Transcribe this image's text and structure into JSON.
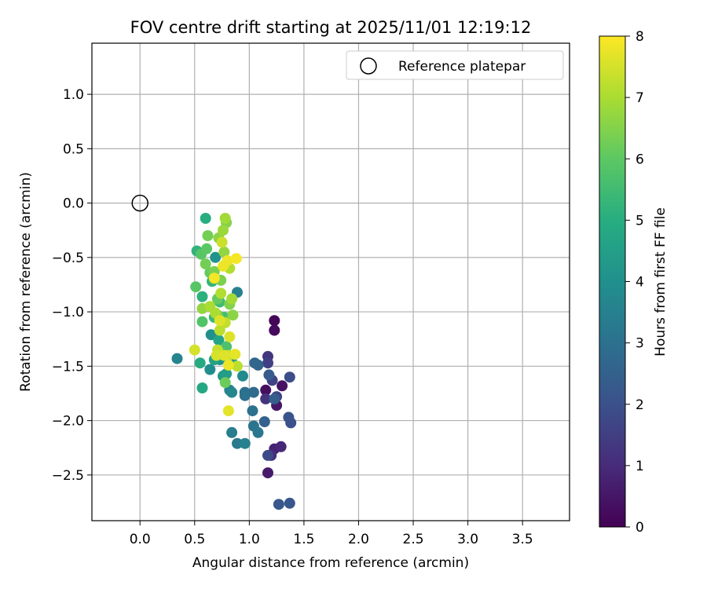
{
  "chart_data": {
    "type": "scatter",
    "title": "FOV centre drift starting at 2025/11/01 12:19:12",
    "xlabel": "Angular distance from reference (arcmin)",
    "ylabel": "Rotation from reference (arcmin)",
    "xlim": [
      -0.44,
      3.93
    ],
    "ylim": [
      -2.92,
      1.47
    ],
    "xticks": [
      0.0,
      0.5,
      1.0,
      1.5,
      2.0,
      2.5,
      3.0,
      3.5
    ],
    "xtick_labels": [
      "0.0",
      "0.5",
      "1.0",
      "1.5",
      "2.0",
      "2.5",
      "3.0",
      "3.5"
    ],
    "yticks": [
      1.0,
      0.5,
      0.0,
      -0.5,
      -1.0,
      -1.5,
      -2.0,
      -2.5
    ],
    "ytick_labels": [
      "1.0",
      "0.5",
      "0.0",
      "−0.5",
      "−1.0",
      "−1.5",
      "−2.0",
      "−2.5"
    ],
    "grid": true,
    "legend": {
      "position": "top-right",
      "entries": [
        "Reference platepar"
      ]
    },
    "reference_point": {
      "x": 0.0,
      "y": 0.0,
      "marker": "open-circle",
      "label": "Reference platepar"
    },
    "colorbar": {
      "label": "Hours from first FF file",
      "colormap": "viridis",
      "min": 0,
      "max": 8,
      "ticks": [
        0,
        1,
        2,
        3,
        4,
        5,
        6,
        7,
        8
      ],
      "tick_labels": [
        "0",
        "1",
        "2",
        "3",
        "4",
        "5",
        "6",
        "7",
        "8"
      ]
    },
    "points": [
      {
        "x": 1.23,
        "y": -1.08,
        "h": 0.1
      },
      {
        "x": 1.23,
        "y": -1.17,
        "h": 0.2
      },
      {
        "x": 1.15,
        "y": -1.72,
        "h": 0.3
      },
      {
        "x": 1.3,
        "y": -1.68,
        "h": 0.4
      },
      {
        "x": 1.25,
        "y": -1.86,
        "h": 0.5
      },
      {
        "x": 1.17,
        "y": -2.48,
        "h": 0.6
      },
      {
        "x": 1.23,
        "y": -2.26,
        "h": 0.8
      },
      {
        "x": 1.29,
        "y": -2.24,
        "h": 0.9
      },
      {
        "x": 1.2,
        "y": -2.32,
        "h": 1.1
      },
      {
        "x": 1.15,
        "y": -1.8,
        "h": 1.2
      },
      {
        "x": 1.17,
        "y": -1.41,
        "h": 1.3
      },
      {
        "x": 1.17,
        "y": -1.47,
        "h": 1.5
      },
      {
        "x": 1.21,
        "y": -1.63,
        "h": 1.6
      },
      {
        "x": 1.25,
        "y": -1.78,
        "h": 1.7
      },
      {
        "x": 1.17,
        "y": -2.32,
        "h": 1.8
      },
      {
        "x": 1.37,
        "y": -1.6,
        "h": 1.9
      },
      {
        "x": 1.38,
        "y": -2.02,
        "h": 2.0
      },
      {
        "x": 1.36,
        "y": -1.97,
        "h": 2.1
      },
      {
        "x": 1.27,
        "y": -2.77,
        "h": 2.2
      },
      {
        "x": 1.37,
        "y": -2.76,
        "h": 2.2
      },
      {
        "x": 1.18,
        "y": -1.58,
        "h": 2.3
      },
      {
        "x": 1.23,
        "y": -1.8,
        "h": 2.4
      },
      {
        "x": 1.14,
        "y": -2.01,
        "h": 2.5
      },
      {
        "x": 1.08,
        "y": -1.49,
        "h": 2.6
      },
      {
        "x": 1.05,
        "y": -1.47,
        "h": 2.7
      },
      {
        "x": 1.04,
        "y": -1.74,
        "h": 2.8
      },
      {
        "x": 0.96,
        "y": -1.74,
        "h": 2.9
      },
      {
        "x": 0.96,
        "y": -1.77,
        "h": 3.0
      },
      {
        "x": 1.03,
        "y": -1.91,
        "h": 3.0
      },
      {
        "x": 1.04,
        "y": -2.05,
        "h": 3.1
      },
      {
        "x": 1.08,
        "y": -2.11,
        "h": 3.2
      },
      {
        "x": 0.89,
        "y": -2.21,
        "h": 3.3
      },
      {
        "x": 0.84,
        "y": -2.11,
        "h": 3.4
      },
      {
        "x": 0.96,
        "y": -2.21,
        "h": 3.5
      },
      {
        "x": 0.89,
        "y": -0.82,
        "h": 3.5
      },
      {
        "x": 0.34,
        "y": -1.43,
        "h": 3.6
      },
      {
        "x": 0.82,
        "y": -1.72,
        "h": 3.6
      },
      {
        "x": 0.84,
        "y": -1.74,
        "h": 3.7
      },
      {
        "x": 0.94,
        "y": -1.59,
        "h": 3.8
      },
      {
        "x": 0.64,
        "y": -1.53,
        "h": 3.9
      },
      {
        "x": 0.65,
        "y": -1.21,
        "h": 4.0
      },
      {
        "x": 0.69,
        "y": -0.5,
        "h": 4.1
      },
      {
        "x": 0.73,
        "y": -1.44,
        "h": 4.2
      },
      {
        "x": 0.76,
        "y": -1.59,
        "h": 4.3
      },
      {
        "x": 0.79,
        "y": -1.57,
        "h": 4.4
      },
      {
        "x": 0.84,
        "y": -1.46,
        "h": 4.5
      },
      {
        "x": 0.68,
        "y": -1.44,
        "h": 4.6
      },
      {
        "x": 0.72,
        "y": -1.26,
        "h": 4.7
      },
      {
        "x": 0.57,
        "y": -1.7,
        "h": 4.8
      },
      {
        "x": 0.55,
        "y": -1.47,
        "h": 4.9
      },
      {
        "x": 0.6,
        "y": -0.14,
        "h": 5.0
      },
      {
        "x": 0.57,
        "y": -0.86,
        "h": 5.1
      },
      {
        "x": 0.52,
        "y": -0.44,
        "h": 5.2
      },
      {
        "x": 0.66,
        "y": -0.72,
        "h": 5.3
      },
      {
        "x": 0.68,
        "y": -1.05,
        "h": 5.4
      },
      {
        "x": 0.73,
        "y": -0.91,
        "h": 5.5
      },
      {
        "x": 0.77,
        "y": -1.05,
        "h": 5.6
      },
      {
        "x": 0.79,
        "y": -1.32,
        "h": 5.7
      },
      {
        "x": 0.57,
        "y": -1.09,
        "h": 5.8
      },
      {
        "x": 0.51,
        "y": -0.77,
        "h": 5.9
      },
      {
        "x": 0.56,
        "y": -0.47,
        "h": 5.9
      },
      {
        "x": 0.61,
        "y": -0.42,
        "h": 6.0
      },
      {
        "x": 0.64,
        "y": -0.64,
        "h": 6.1
      },
      {
        "x": 0.71,
        "y": -0.88,
        "h": 6.1
      },
      {
        "x": 0.78,
        "y": -1.65,
        "h": 6.2
      },
      {
        "x": 0.71,
        "y": -1.03,
        "h": 6.2
      },
      {
        "x": 0.6,
        "y": -0.56,
        "h": 6.3
      },
      {
        "x": 0.62,
        "y": -0.3,
        "h": 6.3
      },
      {
        "x": 0.68,
        "y": -0.63,
        "h": 6.4
      },
      {
        "x": 0.74,
        "y": -0.71,
        "h": 6.4
      },
      {
        "x": 0.79,
        "y": -0.18,
        "h": 6.5
      },
      {
        "x": 0.82,
        "y": -0.93,
        "h": 6.5
      },
      {
        "x": 0.85,
        "y": -1.03,
        "h": 6.6
      },
      {
        "x": 0.72,
        "y": -0.32,
        "h": 6.6
      },
      {
        "x": 0.77,
        "y": -0.45,
        "h": 6.7
      },
      {
        "x": 0.57,
        "y": -0.97,
        "h": 6.7
      },
      {
        "x": 0.76,
        "y": -0.25,
        "h": 6.8
      },
      {
        "x": 0.78,
        "y": -0.14,
        "h": 6.9
      },
      {
        "x": 0.84,
        "y": -0.88,
        "h": 6.9
      },
      {
        "x": 0.64,
        "y": -0.95,
        "h": 7.0
      },
      {
        "x": 0.69,
        "y": -1.01,
        "h": 7.0
      },
      {
        "x": 0.74,
        "y": -0.83,
        "h": 7.1
      },
      {
        "x": 0.82,
        "y": -0.6,
        "h": 7.1
      },
      {
        "x": 0.89,
        "y": -1.5,
        "h": 7.2
      },
      {
        "x": 0.73,
        "y": -1.17,
        "h": 7.2
      },
      {
        "x": 0.78,
        "y": -1.1,
        "h": 7.3
      },
      {
        "x": 0.71,
        "y": -1.35,
        "h": 7.3
      },
      {
        "x": 0.75,
        "y": -0.36,
        "h": 7.4
      },
      {
        "x": 0.81,
        "y": -1.4,
        "h": 7.4
      },
      {
        "x": 0.5,
        "y": -1.35,
        "h": 7.5
      },
      {
        "x": 0.7,
        "y": -1.4,
        "h": 7.5
      },
      {
        "x": 0.82,
        "y": -1.23,
        "h": 7.6
      },
      {
        "x": 0.77,
        "y": -1.4,
        "h": 7.6
      },
      {
        "x": 0.87,
        "y": -1.39,
        "h": 7.7
      },
      {
        "x": 0.81,
        "y": -1.91,
        "h": 7.7
      },
      {
        "x": 0.76,
        "y": -0.58,
        "h": 7.8
      },
      {
        "x": 0.8,
        "y": -0.53,
        "h": 7.8
      },
      {
        "x": 0.68,
        "y": -0.69,
        "h": 7.9
      },
      {
        "x": 0.88,
        "y": -0.51,
        "h": 7.9
      },
      {
        "x": 0.73,
        "y": -1.08,
        "h": 7.6
      },
      {
        "x": 0.81,
        "y": -1.49,
        "h": 7.8
      }
    ]
  }
}
